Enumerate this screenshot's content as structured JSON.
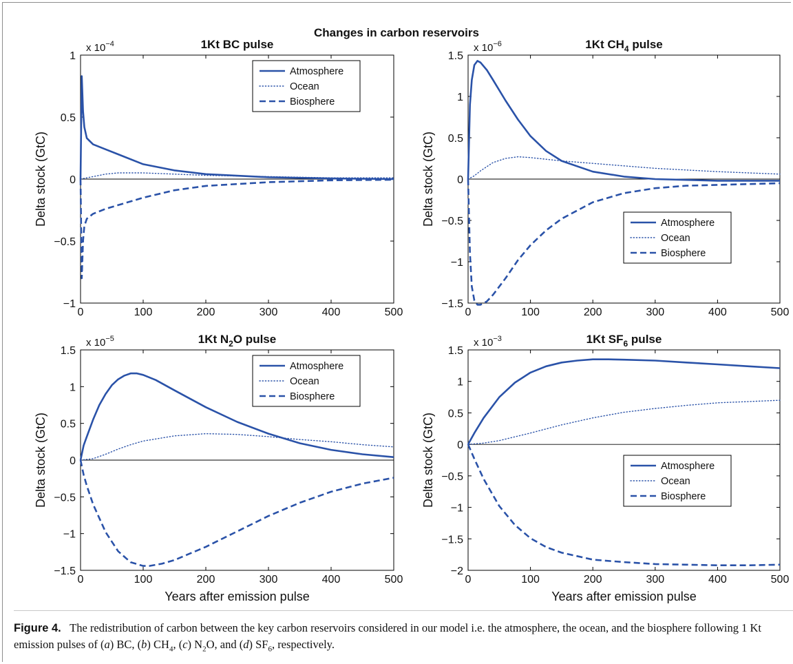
{
  "main_title": "Changes in carbon reservoirs",
  "caption": {
    "label": "Figure 4.",
    "text": "The redistribution of carbon between the key carbon reservoirs considered in our model i.e. the atmosphere, the ocean, and the biosphere following 1 Kt emission pulses of (a) BC, (b) CH4, (c) N2O, and (d) SF6, respectively."
  },
  "colors": {
    "series": "#2a52a8",
    "zero_line": "#000000",
    "axis": "#000000"
  },
  "chart_data": [
    {
      "type": "line",
      "title": "1Kt BC pulse",
      "title_parts": [
        {
          "t": "1Kt BC pulse"
        }
      ],
      "ylabel": "Delta stock (GtC)",
      "xlabel": "",
      "exponent": "x 10",
      "exponent_power": "−4",
      "xlim": [
        0,
        500
      ],
      "ylim": [
        -1,
        1
      ],
      "xticks": [
        0,
        100,
        200,
        300,
        400,
        500
      ],
      "yticks": [
        -1,
        -0.5,
        0,
        0.5,
        1
      ],
      "ytick_labels": [
        "−1",
        "−0.5",
        "0",
        "0.5",
        "1"
      ],
      "legend_position": "top-right",
      "series": [
        {
          "name": "Atmosphere",
          "style": "solid",
          "x": [
            0,
            2,
            4,
            6,
            10,
            20,
            40,
            60,
            100,
            150,
            200,
            300,
            400,
            500
          ],
          "y": [
            0,
            0.83,
            0.55,
            0.42,
            0.33,
            0.28,
            0.24,
            0.2,
            0.12,
            0.07,
            0.04,
            0.015,
            0.005,
            0.0
          ]
        },
        {
          "name": "Ocean",
          "style": "dotted",
          "x": [
            0,
            10,
            20,
            40,
            60,
            80,
            100,
            150,
            200,
            300,
            400,
            500
          ],
          "y": [
            0,
            0.01,
            0.02,
            0.04,
            0.05,
            0.05,
            0.05,
            0.04,
            0.03,
            0.02,
            0.01,
            0.01
          ]
        },
        {
          "name": "Biosphere",
          "style": "dashed",
          "x": [
            0,
            2,
            4,
            6,
            10,
            20,
            40,
            60,
            100,
            150,
            200,
            300,
            400,
            500
          ],
          "y": [
            0,
            -0.8,
            -0.5,
            -0.38,
            -0.32,
            -0.28,
            -0.24,
            -0.21,
            -0.15,
            -0.09,
            -0.055,
            -0.025,
            -0.01,
            -0.005
          ]
        }
      ]
    },
    {
      "type": "line",
      "title": "1Kt CH4 pulse",
      "title_parts": [
        {
          "t": "1Kt CH"
        },
        {
          "t": "4",
          "sub": true
        },
        {
          "t": " pulse"
        }
      ],
      "ylabel": "Delta stock (GtC)",
      "xlabel": "",
      "exponent": "x 10",
      "exponent_power": "−6",
      "xlim": [
        0,
        500
      ],
      "ylim": [
        -1.5,
        1.5
      ],
      "xticks": [
        0,
        100,
        200,
        300,
        400,
        500
      ],
      "yticks": [
        -1.5,
        -1,
        -0.5,
        0,
        0.5,
        1,
        1.5
      ],
      "ytick_labels": [
        "−1.5",
        "−1",
        "−0.5",
        "0",
        "0.5",
        "1",
        "1.5"
      ],
      "legend_position": "lower-right",
      "series": [
        {
          "name": "Atmosphere",
          "style": "solid",
          "x": [
            0,
            3,
            6,
            10,
            15,
            20,
            30,
            40,
            60,
            80,
            100,
            125,
            150,
            200,
            250,
            300,
            350,
            400,
            500
          ],
          "y": [
            0,
            0.9,
            1.2,
            1.38,
            1.43,
            1.41,
            1.32,
            1.2,
            0.95,
            0.72,
            0.52,
            0.34,
            0.22,
            0.09,
            0.03,
            0.0,
            -0.01,
            -0.02,
            -0.02
          ]
        },
        {
          "name": "Ocean",
          "style": "dotted",
          "x": [
            0,
            10,
            20,
            40,
            60,
            80,
            100,
            150,
            200,
            250,
            300,
            400,
            500
          ],
          "y": [
            0,
            0.04,
            0.1,
            0.2,
            0.25,
            0.27,
            0.26,
            0.22,
            0.19,
            0.16,
            0.13,
            0.09,
            0.06
          ]
        },
        {
          "name": "Biosphere",
          "style": "dashed",
          "x": [
            0,
            3,
            6,
            10,
            15,
            20,
            30,
            40,
            60,
            80,
            100,
            125,
            150,
            200,
            250,
            300,
            350,
            400,
            500
          ],
          "y": [
            0,
            -0.9,
            -1.3,
            -1.47,
            -1.52,
            -1.52,
            -1.48,
            -1.4,
            -1.2,
            -0.98,
            -0.8,
            -0.62,
            -0.48,
            -0.28,
            -0.17,
            -0.11,
            -0.08,
            -0.07,
            -0.05
          ]
        }
      ]
    },
    {
      "type": "line",
      "title": "1Kt N2O pulse",
      "title_parts": [
        {
          "t": "1Kt N"
        },
        {
          "t": "2",
          "sub": true
        },
        {
          "t": "O pulse"
        }
      ],
      "ylabel": "Delta stock (GtC)",
      "xlabel": "Years after emission pulse",
      "exponent": "x 10",
      "exponent_power": "−5",
      "xlim": [
        0,
        500
      ],
      "ylim": [
        -1.5,
        1.5
      ],
      "xticks": [
        0,
        100,
        200,
        300,
        400,
        500
      ],
      "yticks": [
        -1.5,
        -1,
        -0.5,
        0,
        0.5,
        1,
        1.5
      ],
      "ytick_labels": [
        "−1.5",
        "−1",
        "−0.5",
        "0",
        "0.5",
        "1",
        "1.5"
      ],
      "legend_position": "top-right",
      "series": [
        {
          "name": "Atmosphere",
          "style": "solid",
          "x": [
            0,
            5,
            10,
            20,
            30,
            40,
            50,
            60,
            70,
            80,
            90,
            100,
            120,
            150,
            200,
            250,
            300,
            350,
            400,
            450,
            500
          ],
          "y": [
            0,
            0.2,
            0.32,
            0.55,
            0.75,
            0.9,
            1.02,
            1.1,
            1.15,
            1.18,
            1.18,
            1.16,
            1.09,
            0.95,
            0.72,
            0.52,
            0.36,
            0.23,
            0.14,
            0.08,
            0.04
          ]
        },
        {
          "name": "Ocean",
          "style": "dotted",
          "x": [
            0,
            20,
            40,
            60,
            80,
            100,
            150,
            200,
            250,
            300,
            350,
            400,
            450,
            500
          ],
          "y": [
            0,
            0.02,
            0.08,
            0.15,
            0.21,
            0.26,
            0.33,
            0.36,
            0.35,
            0.32,
            0.28,
            0.25,
            0.21,
            0.18
          ]
        },
        {
          "name": "Biosphere",
          "style": "dashed",
          "x": [
            0,
            5,
            10,
            20,
            40,
            60,
            80,
            100,
            110,
            130,
            150,
            200,
            250,
            300,
            350,
            400,
            450,
            500
          ],
          "y": [
            0,
            -0.2,
            -0.35,
            -0.6,
            -0.98,
            -1.24,
            -1.39,
            -1.44,
            -1.44,
            -1.41,
            -1.36,
            -1.18,
            -0.97,
            -0.76,
            -0.58,
            -0.43,
            -0.32,
            -0.24
          ]
        }
      ]
    },
    {
      "type": "line",
      "title": "1Kt SF6 pulse",
      "title_parts": [
        {
          "t": "1Kt SF"
        },
        {
          "t": "6",
          "sub": true
        },
        {
          "t": " pulse"
        }
      ],
      "ylabel": "Delta stock (GtC)",
      "xlabel": "Years after emission pulse",
      "exponent": "x 10",
      "exponent_power": "−3",
      "xlim": [
        0,
        500
      ],
      "ylim": [
        -2,
        1.5
      ],
      "xticks": [
        0,
        100,
        200,
        300,
        400,
        500
      ],
      "yticks": [
        -2,
        -1.5,
        -1,
        -0.5,
        0,
        0.5,
        1,
        1.5
      ],
      "ytick_labels": [
        "−2",
        "−1.5",
        "−1",
        "−0.5",
        "0",
        "0.5",
        "1",
        "1.5"
      ],
      "legend_position": "lower-right",
      "series": [
        {
          "name": "Atmosphere",
          "style": "solid",
          "x": [
            0,
            10,
            25,
            50,
            75,
            100,
            125,
            150,
            175,
            200,
            225,
            250,
            300,
            350,
            400,
            450,
            500
          ],
          "y": [
            0,
            0.18,
            0.42,
            0.75,
            0.98,
            1.14,
            1.24,
            1.3,
            1.33,
            1.35,
            1.35,
            1.345,
            1.33,
            1.3,
            1.27,
            1.24,
            1.21
          ]
        },
        {
          "name": "Ocean",
          "style": "dotted",
          "x": [
            0,
            25,
            50,
            100,
            150,
            200,
            250,
            300,
            350,
            400,
            450,
            500
          ],
          "y": [
            0,
            0.02,
            0.06,
            0.18,
            0.31,
            0.42,
            0.51,
            0.57,
            0.62,
            0.66,
            0.68,
            0.7
          ]
        },
        {
          "name": "Biosphere",
          "style": "dashed",
          "x": [
            0,
            10,
            25,
            50,
            75,
            100,
            125,
            150,
            200,
            250,
            300,
            350,
            400,
            450,
            500
          ],
          "y": [
            0,
            -0.23,
            -0.55,
            -0.98,
            -1.28,
            -1.49,
            -1.63,
            -1.72,
            -1.83,
            -1.87,
            -1.9,
            -1.91,
            -1.92,
            -1.92,
            -1.91
          ]
        }
      ]
    }
  ]
}
